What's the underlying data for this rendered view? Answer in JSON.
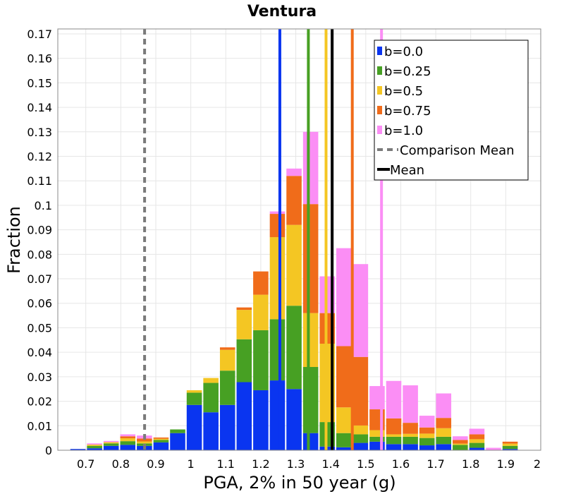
{
  "chart_data": {
    "type": "bar",
    "stacked": true,
    "title": "Ventura",
    "xlabel": "PGA, 2% in 50 year (g)",
    "ylabel": "Fraction",
    "xlim": [
      0.62,
      2.0
    ],
    "ylim": [
      0,
      0.172
    ],
    "grid": true,
    "legend_position": "top-right",
    "x_ticks": [
      0.7,
      0.8,
      0.9,
      1,
      1.1,
      1.2,
      1.3,
      1.4,
      1.5,
      1.6,
      1.7,
      1.8,
      1.9,
      2
    ],
    "x_tick_labels": [
      "0.7",
      "0.8",
      "0.9",
      "1",
      "1.1",
      "1.2",
      "1.3",
      "1.4",
      "1.5",
      "1.6",
      "1.7",
      "1.8",
      "1.9",
      "2"
    ],
    "y_ticks": [
      0,
      0.01,
      0.02,
      0.03,
      0.04,
      0.05,
      0.06,
      0.07,
      0.08,
      0.09,
      0.1,
      0.11,
      0.12,
      0.13,
      0.14,
      0.15,
      0.16,
      0.17
    ],
    "y_tick_labels": [
      "0",
      "0.01",
      "0.02",
      "0.03",
      "0.04",
      "0.05",
      "0.06",
      "0.07",
      "0.08",
      "0.09",
      "0.1",
      "0.11",
      "0.12",
      "0.13",
      "0.14",
      "0.15",
      "0.16",
      "0.17"
    ],
    "bin_width": 0.0475,
    "bin_centers": [
      0.6775,
      0.725,
      0.7725,
      0.82,
      0.8675,
      0.915,
      0.9625,
      1.01,
      1.0575,
      1.105,
      1.1525,
      1.2,
      1.2475,
      1.295,
      1.3425,
      1.39,
      1.4375,
      1.485,
      1.5325,
      1.58,
      1.6275,
      1.675,
      1.7225,
      1.77,
      1.8175,
      1.865,
      1.9125,
      1.96
    ],
    "series": [
      {
        "name": "b=0.0",
        "color": "#0a35f0",
        "values": [
          0.0005,
          0.0008,
          0.0018,
          0.0022,
          0.0018,
          0.0032,
          0.007,
          0.0185,
          0.0155,
          0.0185,
          0.0278,
          0.0245,
          0.0285,
          0.025,
          0.007,
          0.0015,
          0.0012,
          0.003,
          0.0035,
          0.0025,
          0.0025,
          0.002,
          0.0025,
          0,
          0.001,
          0,
          0.0005,
          0
        ]
      },
      {
        "name": "b=0.25",
        "color": "#47a023",
        "values": [
          0,
          0.001,
          0.001,
          0.0015,
          0.001,
          0.001,
          0.0015,
          0.005,
          0.012,
          0.014,
          0.0175,
          0.0245,
          0.025,
          0.034,
          0.027,
          0.01,
          0.0058,
          0.0035,
          0.002,
          0.003,
          0.003,
          0.003,
          0.003,
          0.0022,
          0.002,
          0,
          0.0013,
          0
        ]
      },
      {
        "name": "b=0.5",
        "color": "#f4c623",
        "values": [
          0,
          0.0005,
          0.0005,
          0.0012,
          0.0008,
          0.0005,
          0,
          0.001,
          0.002,
          0.0085,
          0.012,
          0.0145,
          0.0335,
          0.033,
          0.022,
          0.032,
          0.0105,
          0.0036,
          0.0027,
          0.001,
          0.0012,
          0.0018,
          0.0035,
          0.0005,
          0.0015,
          0,
          0.0009,
          0
        ]
      },
      {
        "name": "b=0.75",
        "color": "#f06c1a",
        "values": [
          0,
          0,
          0,
          0.0008,
          0.0012,
          0.0005,
          0,
          0,
          0,
          0.001,
          0.001,
          0.0095,
          0.0095,
          0.02,
          0.0445,
          0.0125,
          0.025,
          0.028,
          0.0085,
          0.0065,
          0.0045,
          0.0025,
          0.0042,
          0.0015,
          0.002,
          0,
          0.0008,
          0
        ]
      },
      {
        "name": "b=1.0",
        "color": "#fb8ef5",
        "values": [
          0,
          0.0005,
          0.0005,
          0.0008,
          0.0012,
          0,
          0,
          0,
          0,
          0,
          0,
          0,
          0.001,
          0.003,
          0.0295,
          0.015,
          0.04,
          0.0379,
          0.0095,
          0.0153,
          0.0153,
          0.0048,
          0.01,
          0.0015,
          0.0023,
          0.001,
          0,
          0
        ]
      }
    ],
    "vertical_lines": [
      {
        "name": "b=0.0",
        "x": 1.2545,
        "color": "#0a35f0",
        "style": "solid"
      },
      {
        "name": "b=0.25",
        "x": 1.336,
        "color": "#47a023",
        "style": "solid"
      },
      {
        "name": "b=0.5",
        "x": 1.3865,
        "color": "#f4c623",
        "style": "solid"
      },
      {
        "name": "b=0.75",
        "x": 1.4615,
        "color": "#f06c1a",
        "style": "solid"
      },
      {
        "name": "b=1.0",
        "x": 1.545,
        "color": "#fb8ef5",
        "style": "solid"
      },
      {
        "name": "Comparison Mean",
        "x": 0.868,
        "color": "#7a7a7a",
        "style": "dashed"
      },
      {
        "name": "Mean",
        "x": 1.404,
        "color": "#000000",
        "style": "solid"
      }
    ],
    "legend": [
      {
        "label": "b=0.0",
        "color": "#0a35f0",
        "marker": "square"
      },
      {
        "label": "b=0.25",
        "color": "#47a023",
        "marker": "square"
      },
      {
        "label": "b=0.5",
        "color": "#f4c623",
        "marker": "square"
      },
      {
        "label": "b=0.75",
        "color": "#f06c1a",
        "marker": "square"
      },
      {
        "label": "b=1.0",
        "color": "#fb8ef5",
        "marker": "square"
      },
      {
        "label": "Comparison Mean",
        "color": "#7a7a7a",
        "marker": "dashed-line"
      },
      {
        "label": "Mean",
        "color": "#000000",
        "marker": "solid-line"
      }
    ]
  }
}
